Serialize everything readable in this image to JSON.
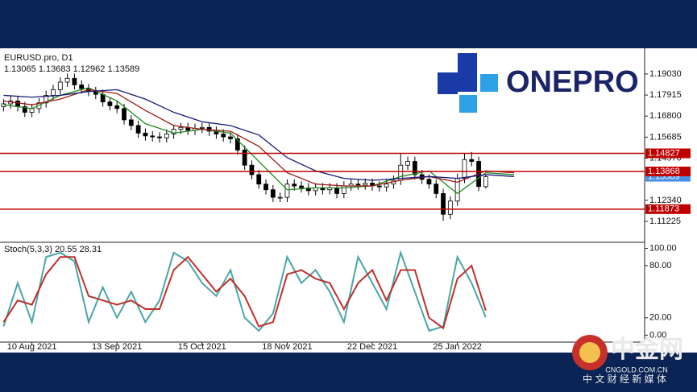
{
  "chart_data": [
    {
      "type": "candlestick",
      "title": "EURUSD.pro, D1",
      "subtitle": "1.13065 1.13683 1.12962 1.13589",
      "open": [
        1.173,
        1.1745,
        1.176,
        1.173,
        1.17,
        1.172,
        1.175,
        1.179,
        1.182,
        1.186,
        1.188,
        1.1845,
        1.1825,
        1.181,
        1.1795,
        1.1755,
        1.1735,
        1.172,
        1.166,
        1.163,
        1.159,
        1.1575,
        1.157,
        1.1565,
        1.1585,
        1.161,
        1.162,
        1.1605,
        1.1615,
        1.162,
        1.16,
        1.1585,
        1.157,
        1.156,
        1.15,
        1.142,
        1.137,
        1.132,
        1.129,
        1.125,
        1.125,
        1.132,
        1.131,
        1.13,
        1.1285,
        1.13,
        1.129,
        1.13,
        1.127,
        1.131,
        1.132,
        1.1315,
        1.1325,
        1.131,
        1.1305,
        1.132,
        1.134,
        1.142,
        1.144,
        1.137,
        1.1345,
        1.132,
        1.127,
        1.116,
        1.123,
        1.135,
        1.145,
        1.144,
        1.13065
      ],
      "high": [
        1.177,
        1.1785,
        1.1785,
        1.1755,
        1.1745,
        1.1775,
        1.1815,
        1.1845,
        1.1885,
        1.1905,
        1.1905,
        1.187,
        1.185,
        1.1835,
        1.182,
        1.178,
        1.176,
        1.1745,
        1.1685,
        1.1655,
        1.1615,
        1.16,
        1.1595,
        1.161,
        1.1635,
        1.1645,
        1.1645,
        1.164,
        1.1645,
        1.1645,
        1.1625,
        1.161,
        1.1595,
        1.1585,
        1.1525,
        1.1445,
        1.1395,
        1.1345,
        1.1315,
        1.1275,
        1.1345,
        1.1345,
        1.1335,
        1.1325,
        1.1325,
        1.1325,
        1.1325,
        1.1325,
        1.1335,
        1.1345,
        1.1345,
        1.135,
        1.135,
        1.1335,
        1.1345,
        1.1365,
        1.148,
        1.1465,
        1.1465,
        1.1395,
        1.137,
        1.1345,
        1.1295,
        1.1255,
        1.1375,
        1.148,
        1.149,
        1.1465,
        1.13683
      ],
      "low": [
        1.1705,
        1.172,
        1.1705,
        1.1675,
        1.1675,
        1.1695,
        1.1725,
        1.1765,
        1.1795,
        1.1835,
        1.182,
        1.18,
        1.1785,
        1.177,
        1.173,
        1.171,
        1.1695,
        1.1635,
        1.1605,
        1.1565,
        1.155,
        1.1545,
        1.154,
        1.154,
        1.156,
        1.1585,
        1.158,
        1.158,
        1.159,
        1.1575,
        1.156,
        1.1545,
        1.1535,
        1.1475,
        1.1395,
        1.1345,
        1.1295,
        1.1265,
        1.1225,
        1.1225,
        1.1225,
        1.1285,
        1.1275,
        1.126,
        1.126,
        1.1265,
        1.1265,
        1.1245,
        1.1245,
        1.1285,
        1.129,
        1.129,
        1.1285,
        1.128,
        1.128,
        1.1295,
        1.1315,
        1.1395,
        1.1345,
        1.132,
        1.1295,
        1.1245,
        1.1125,
        1.1135,
        1.1205,
        1.1325,
        1.1415,
        1.1282,
        1.12962
      ],
      "close": [
        1.1745,
        1.176,
        1.173,
        1.17,
        1.172,
        1.175,
        1.179,
        1.182,
        1.186,
        1.188,
        1.1845,
        1.1825,
        1.181,
        1.1795,
        1.1755,
        1.1735,
        1.172,
        1.166,
        1.163,
        1.159,
        1.1575,
        1.157,
        1.1565,
        1.1585,
        1.161,
        1.162,
        1.1605,
        1.1615,
        1.162,
        1.16,
        1.1585,
        1.157,
        1.156,
        1.15,
        1.142,
        1.137,
        1.132,
        1.129,
        1.125,
        1.125,
        1.132,
        1.131,
        1.13,
        1.1285,
        1.13,
        1.129,
        1.13,
        1.127,
        1.131,
        1.132,
        1.1315,
        1.1325,
        1.131,
        1.1305,
        1.132,
        1.134,
        1.142,
        1.144,
        1.137,
        1.1345,
        1.132,
        1.127,
        1.116,
        1.123,
        1.135,
        1.145,
        1.144,
        1.1307,
        1.13589
      ],
      "up_color": "#ffffff",
      "down_color": "#000000",
      "xlim": [
        -0.5,
        90.4
      ],
      "xticks": [
        {
          "value": 4,
          "label": "10 Aug 2021"
        },
        {
          "value": 16,
          "label": "13 Sep 2021"
        },
        {
          "value": 28,
          "label": "15 Oct 2021"
        },
        {
          "value": 40,
          "label": "18 Nov 2021"
        },
        {
          "value": 52,
          "label": "22 Dec 2021"
        },
        {
          "value": 64,
          "label": "25 Jan 2022"
        }
      ],
      "ylim": [
        1.1016,
        1.2022
      ],
      "yticks": [
        {
          "value": 1.1903,
          "label": "1.19030"
        },
        {
          "value": 1.17915,
          "label": "1.17915"
        },
        {
          "value": 1.168,
          "label": "1.16800"
        },
        {
          "value": 1.15685,
          "label": "1.15685"
        },
        {
          "value": 1.1457,
          "label": "1.14570"
        },
        {
          "value": 1.1234,
          "label": "1.12340"
        },
        {
          "value": 1.11225,
          "label": "1.11225"
        }
      ],
      "moving_averages": [
        {
          "color": "#1f8a1f",
          "x": [
            0,
            4,
            8,
            12,
            16,
            20,
            24,
            28,
            32,
            36,
            40,
            44,
            48,
            52,
            56,
            60,
            64,
            68,
            72
          ],
          "values": [
            1.174,
            1.172,
            1.179,
            1.183,
            1.176,
            1.164,
            1.159,
            1.161,
            1.159,
            1.144,
            1.129,
            1.13,
            1.13,
            1.131,
            1.136,
            1.139,
            1.127,
            1.138,
            1.137
          ]
        },
        {
          "color": "#a01818",
          "x": [
            0,
            4,
            8,
            12,
            16,
            20,
            24,
            28,
            32,
            36,
            40,
            44,
            48,
            52,
            56,
            60,
            64,
            68,
            72
          ],
          "values": [
            1.176,
            1.174,
            1.177,
            1.182,
            1.18,
            1.171,
            1.163,
            1.161,
            1.16,
            1.152,
            1.138,
            1.132,
            1.131,
            1.131,
            1.134,
            1.136,
            1.133,
            1.139,
            1.138
          ]
        },
        {
          "color": "#161a7a",
          "x": [
            0,
            4,
            8,
            12,
            16,
            20,
            24,
            28,
            32,
            36,
            40,
            44,
            48,
            52,
            56,
            60,
            64,
            68,
            72
          ],
          "values": [
            1.179,
            1.178,
            1.179,
            1.181,
            1.182,
            1.177,
            1.17,
            1.165,
            1.163,
            1.158,
            1.146,
            1.139,
            1.135,
            1.134,
            1.135,
            1.136,
            1.135,
            1.137,
            1.136
          ]
        }
      ],
      "levels": [
        {
          "value": 1.14827,
          "label": "1.14827",
          "color": "#c00000"
        },
        {
          "value": 1.13868,
          "label": "1.13868",
          "color": "#c00000"
        },
        {
          "value": 1.11873,
          "label": "1.11873",
          "color": "#c00000"
        }
      ],
      "last_price": {
        "value": 1.13589,
        "label": "1.13589",
        "color": "#4a90e2"
      }
    },
    {
      "type": "line",
      "title": "Stoch(5,3,3) 20.55 28.31",
      "x": [
        0,
        2,
        4,
        6,
        8,
        10,
        12,
        14,
        16,
        18,
        20,
        22,
        24,
        26,
        28,
        30,
        32,
        34,
        36,
        38,
        40,
        42,
        44,
        46,
        48,
        50,
        52,
        54,
        56,
        58,
        60,
        62,
        64,
        66,
        68
      ],
      "series": [
        {
          "color": "#4aa6a6",
          "values": [
            10,
            60,
            15,
            90,
            95,
            85,
            15,
            55,
            20,
            50,
            15,
            40,
            95,
            85,
            60,
            45,
            75,
            20,
            5,
            25,
            90,
            60,
            75,
            50,
            15,
            90,
            60,
            30,
            95,
            50,
            5,
            10,
            90,
            60,
            20.55
          ]
        },
        {
          "color": "#c0302a",
          "values": [
            15,
            40,
            35,
            70,
            90,
            90,
            45,
            40,
            35,
            40,
            30,
            30,
            75,
            90,
            70,
            50,
            65,
            45,
            10,
            15,
            70,
            75,
            65,
            60,
            30,
            60,
            75,
            40,
            75,
            75,
            20,
            8,
            65,
            80,
            28.31
          ]
        }
      ],
      "xlim": [
        -0.5,
        90.4
      ],
      "ylim": [
        -8,
        106
      ],
      "yticks": [
        {
          "value": 100,
          "label": "100.00"
        },
        {
          "value": 80,
          "label": "80.00"
        },
        {
          "value": 20,
          "label": "20.00"
        },
        {
          "value": 0,
          "label": "0.00"
        }
      ]
    }
  ],
  "branding": {
    "brand": "ONEPRO",
    "site_name": "中金网",
    "site_url": "CNGOLD.COM.CN",
    "site_slogan": "中 文 财 经 新 媒 体"
  }
}
